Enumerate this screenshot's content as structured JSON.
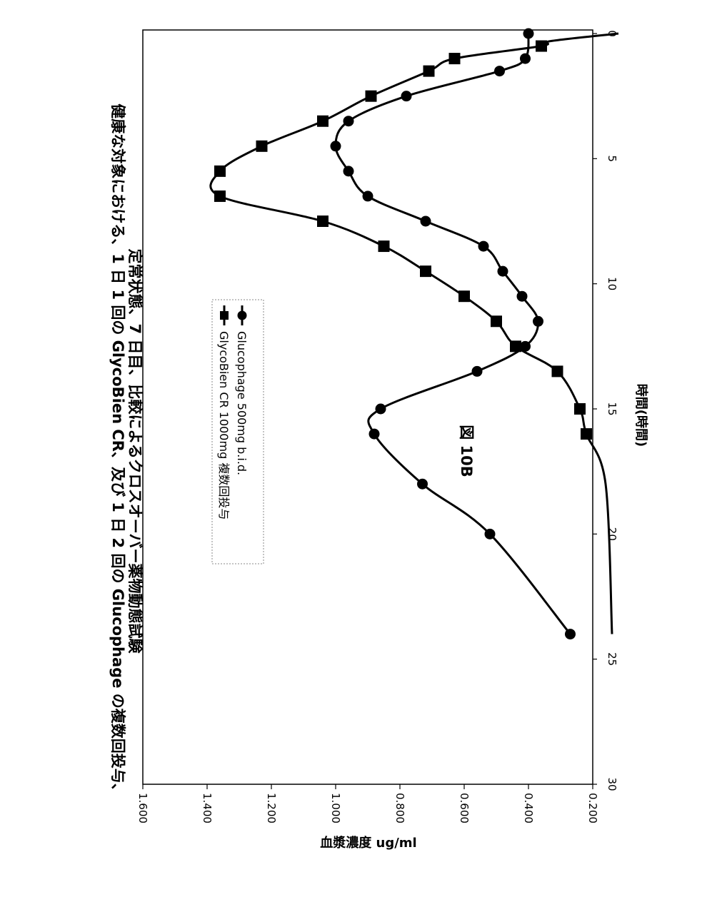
{
  "chart_data": {
    "type": "line",
    "figure_label": "図 10B",
    "title_line1": "健康な対象における、1 日 1 回の GlycoBien CR、及び 1 日 2 回の Glucophage の複数回投与、",
    "title_line2": "定常状態、7 日目、比較によるクロスオーバー薬物動態試験",
    "xlabel": "時間(時間)",
    "ylabel": "血漿濃度 ug/ml",
    "xlim": [
      0,
      30
    ],
    "ylim": [
      0.2,
      1.6
    ],
    "x_ticks": [
      "0",
      "5",
      "10",
      "15",
      "20",
      "25",
      "30"
    ],
    "y_ticks": [
      "0.200",
      "0.400",
      "0.600",
      "0.800",
      "1.000",
      "1.200",
      "1.400",
      "1.600"
    ],
    "legend_placement": "inside, lower-middle",
    "series": [
      {
        "name": "GlycoBien CR 1000mg 複数回投与",
        "marker": "square",
        "x": [
          0.5,
          1.0,
          1.5,
          2.5,
          3.5,
          4.5,
          5.5,
          6.5,
          7.5,
          8.5,
          9.5,
          10.5,
          11.5,
          12.5,
          13.5,
          15.0,
          16.0
        ],
        "y": [
          0.36,
          0.63,
          0.71,
          0.89,
          1.04,
          1.23,
          1.36,
          1.36,
          1.04,
          0.85,
          0.72,
          0.6,
          0.5,
          0.44,
          0.31,
          0.24,
          0.22
        ]
      },
      {
        "name": "Glucophage 500mg b.i.d.",
        "marker": "circle",
        "x": [
          0,
          1.0,
          1.5,
          2.5,
          3.5,
          4.5,
          5.5,
          6.5,
          7.5,
          8.5,
          9.5,
          10.5,
          11.5,
          12.5,
          13.5,
          15.0,
          16.0,
          18.0,
          20.0,
          24.0
        ],
        "y": [
          0.4,
          0.41,
          0.49,
          0.78,
          0.96,
          1.0,
          0.96,
          0.9,
          0.72,
          0.54,
          0.48,
          0.42,
          0.37,
          0.41,
          0.56,
          0.86,
          0.88,
          0.73,
          0.52,
          0.27
        ]
      }
    ]
  }
}
